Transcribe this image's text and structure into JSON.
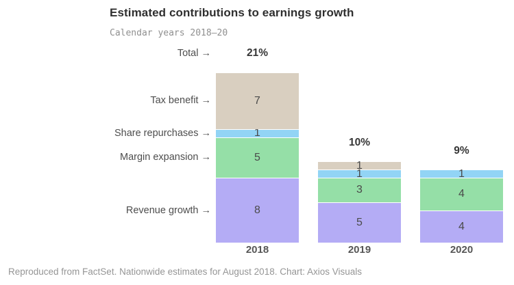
{
  "header": {
    "title": "Estimated contributions to earnings growth",
    "subtitle": "Calendar years 2018–20"
  },
  "footer": {
    "text": "Reproduced from FactSet. Nationwide estimates for August 2018. Chart: Axios Visuals"
  },
  "chart_data": {
    "type": "bar",
    "stacked": true,
    "title": "Estimated contributions to earnings growth",
    "subtitle": "Calendar years 2018–20",
    "categories": [
      "2018",
      "2019",
      "2020"
    ],
    "totals": [
      "21%",
      "10%",
      "9%"
    ],
    "total_annotation_label": "Total",
    "annotation_arrow": "→",
    "series": [
      {
        "name": "Revenue growth",
        "color": "#b4acf5",
        "values": [
          8,
          5,
          4
        ]
      },
      {
        "name": "Margin expansion",
        "color": "#95dfa7",
        "values": [
          5,
          3,
          4
        ]
      },
      {
        "name": "Share repurchases",
        "color": "#92d4f5",
        "values": [
          1,
          1,
          1
        ]
      },
      {
        "name": "Tax benefit",
        "color": "#d9cfc0",
        "values": [
          7,
          1,
          0
        ]
      }
    ],
    "ylim": [
      0,
      21
    ],
    "grid": false,
    "legend_position": "left-annotations",
    "value_labels": "inside-segments",
    "separator_color": "#ffffff"
  }
}
